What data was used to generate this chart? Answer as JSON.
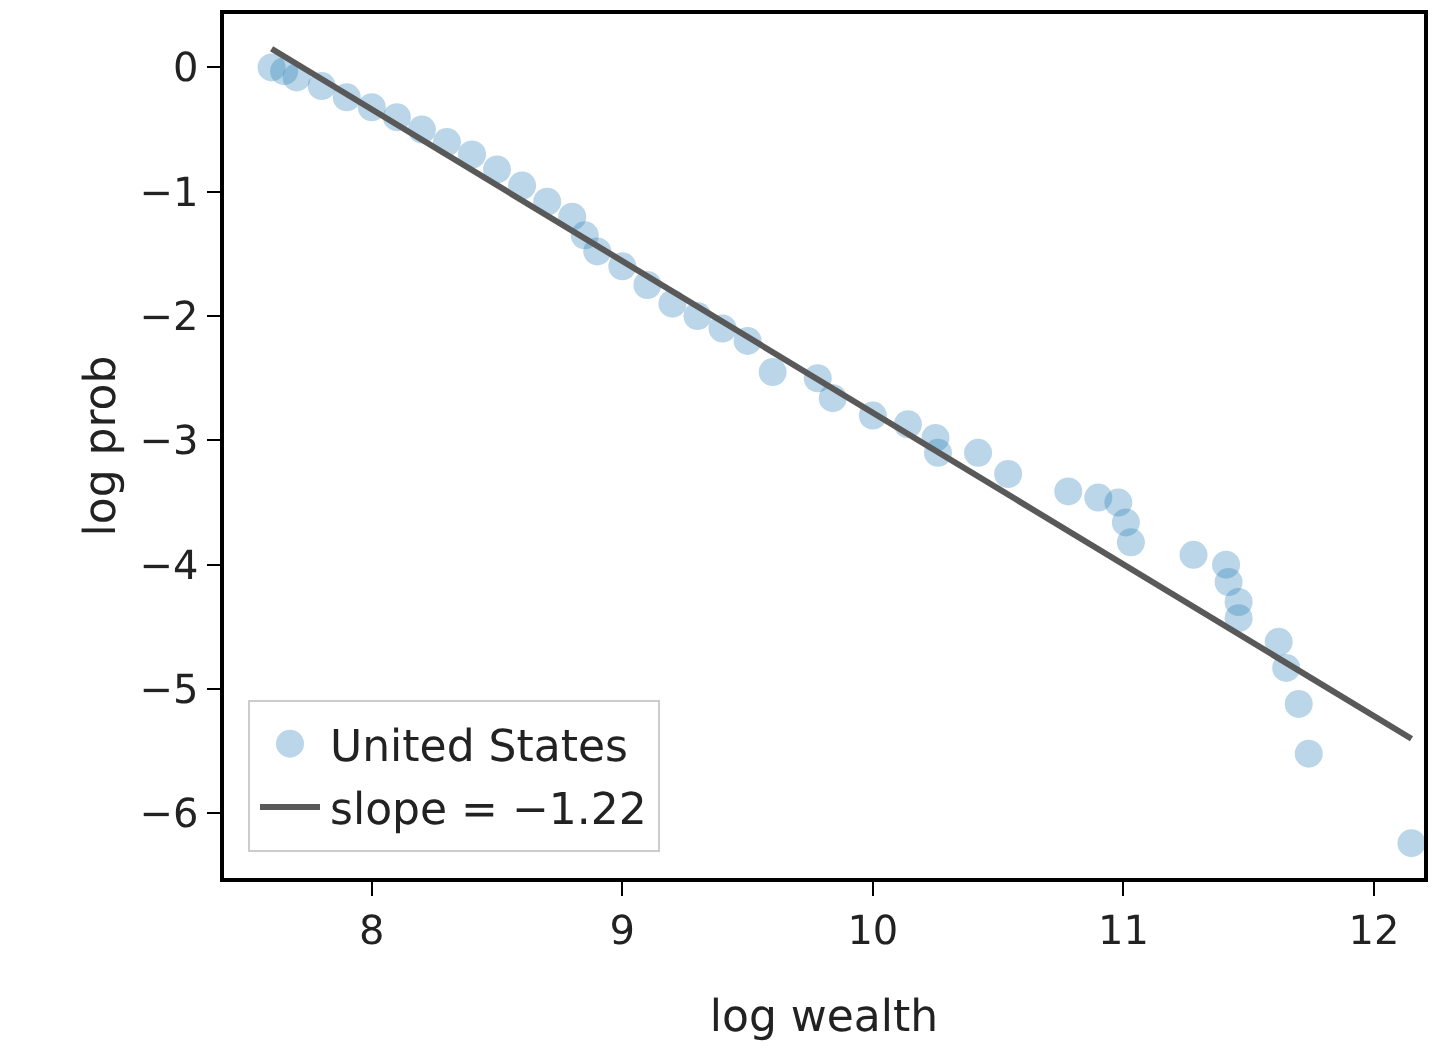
{
  "chart_data": {
    "type": "scatter",
    "xlabel": "log wealth",
    "ylabel": "log prob",
    "xlim": [
      7.41,
      12.2
    ],
    "xticks": [
      8,
      9,
      10,
      11,
      12
    ],
    "ylim": [
      -6.52,
      0.43
    ],
    "yticks": [
      {
        "value": -6,
        "label": "−6"
      },
      {
        "value": -5,
        "label": "−5"
      },
      {
        "value": -4,
        "label": "−4"
      },
      {
        "value": -3,
        "label": "−3"
      },
      {
        "value": -2,
        "label": "−2"
      },
      {
        "value": -1,
        "label": "−1"
      },
      0
    ],
    "grid": false,
    "legend": "bottom left",
    "marker": "circle",
    "series": [
      {
        "name": "United States",
        "color": "#1f77b4",
        "x": [
          7.6,
          7.65,
          7.7,
          7.8,
          7.9,
          8.0,
          8.1,
          8.2,
          8.3,
          8.4,
          8.5,
          8.6,
          8.7,
          8.8,
          8.85,
          8.9,
          9.0,
          9.1,
          9.2,
          9.3,
          9.4,
          9.5,
          9.6,
          9.78,
          9.84,
          10.0,
          10.14,
          10.25,
          10.26,
          10.42,
          10.54,
          10.78,
          10.9,
          10.98,
          11.01,
          11.03,
          11.28,
          11.41,
          11.42,
          11.46,
          11.46,
          11.62,
          11.65,
          11.7,
          11.74,
          12.15
        ],
        "values": [
          0.0,
          -0.03,
          -0.08,
          -0.15,
          -0.24,
          -0.32,
          -0.4,
          -0.5,
          -0.6,
          -0.7,
          -0.82,
          -0.95,
          -1.08,
          -1.2,
          -1.35,
          -1.48,
          -1.6,
          -1.75,
          -1.9,
          -2.0,
          -2.1,
          -2.2,
          -2.45,
          -2.5,
          -2.66,
          -2.8,
          -2.87,
          -2.98,
          -3.1,
          -3.1,
          -3.27,
          -3.41,
          -3.46,
          -3.5,
          -3.66,
          -3.82,
          -3.92,
          -4.0,
          -4.14,
          -4.3,
          -4.43,
          -4.62,
          -4.83,
          -5.12,
          -5.52,
          -6.24
        ]
      },
      {
        "name": "slope = −1.22",
        "type": "line",
        "color": "#595959",
        "marker": "none",
        "line_style": "solid",
        "x": [
          7.6,
          12.15
        ],
        "values": [
          0.15,
          -5.4
        ]
      }
    ]
  }
}
